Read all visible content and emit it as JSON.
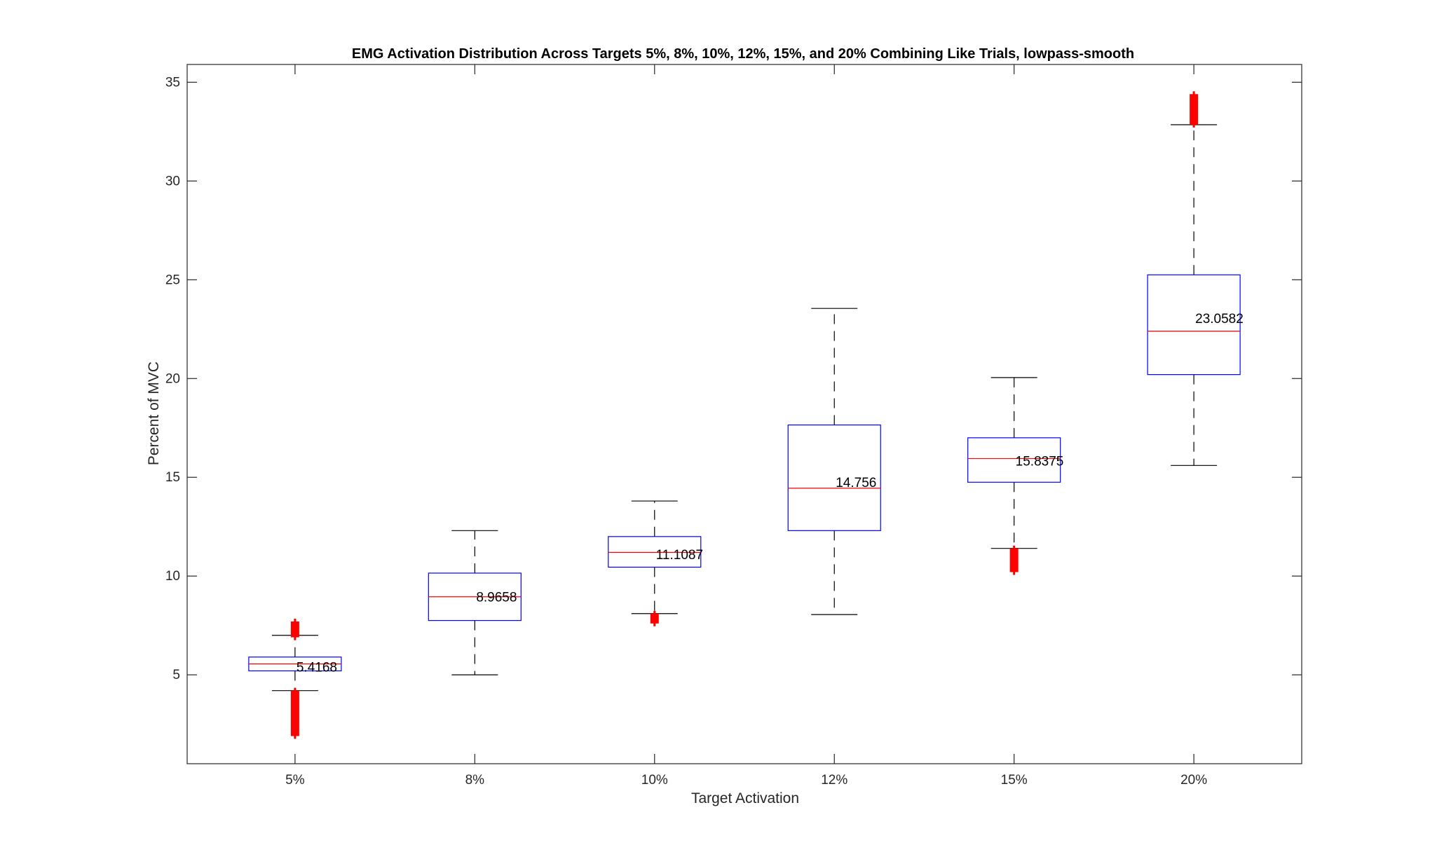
{
  "chart_data": {
    "type": "box",
    "title": "EMG Activation Distribution Across Targets 5%, 8%, 10%, 12%, 15%, and 20% Combining Like Trials, lowpass-smooth",
    "xlabel": "Target Activation",
    "ylabel": "Percent of MVC",
    "ylim": [
      0.5,
      35.9
    ],
    "yticks": [
      5,
      10,
      15,
      20,
      25,
      30,
      35
    ],
    "categories": [
      "5%",
      "8%",
      "10%",
      "12%",
      "15%",
      "20%"
    ],
    "box_color": "#0000ff",
    "median_color": "#ff0000",
    "outlier_color": "#ff0000",
    "whisker_color": "#000000",
    "boxes": [
      {
        "category": "5%",
        "whisker_low": 4.2,
        "q1": 5.2,
        "median": 5.55,
        "q3": 5.9,
        "whisker_high": 7.0,
        "outlier_ranges": [
          [
            1.9,
            4.2
          ],
          [
            6.9,
            7.7
          ]
        ],
        "mean_label": "5.4168",
        "mean": 5.4168
      },
      {
        "category": "8%",
        "whisker_low": 5.0,
        "q1": 7.75,
        "median": 8.95,
        "q3": 10.15,
        "whisker_high": 12.3,
        "outlier_ranges": [],
        "mean_label": "8.9658",
        "mean": 8.9658
      },
      {
        "category": "10%",
        "whisker_low": 8.1,
        "q1": 10.45,
        "median": 11.2,
        "q3": 12.0,
        "whisker_high": 13.8,
        "outlier_ranges": [
          [
            7.6,
            8.1
          ]
        ],
        "mean_label": "11.1087",
        "mean": 11.1087
      },
      {
        "category": "12%",
        "whisker_low": 8.05,
        "q1": 12.3,
        "median": 14.45,
        "q3": 17.65,
        "whisker_high": 23.55,
        "outlier_ranges": [],
        "mean_label": "14.756",
        "mean": 14.756
      },
      {
        "category": "15%",
        "whisker_low": 11.4,
        "q1": 14.75,
        "median": 15.95,
        "q3": 17.0,
        "whisker_high": 20.05,
        "outlier_ranges": [
          [
            10.2,
            11.4
          ]
        ],
        "mean_label": "15.8375",
        "mean": 15.8375
      },
      {
        "category": "20%",
        "whisker_low": 15.6,
        "q1": 20.2,
        "median": 22.4,
        "q3": 25.25,
        "whisker_high": 32.85,
        "outlier_ranges": [
          [
            32.85,
            34.4
          ]
        ],
        "mean_label": "23.0582",
        "mean": 23.0582
      }
    ]
  }
}
